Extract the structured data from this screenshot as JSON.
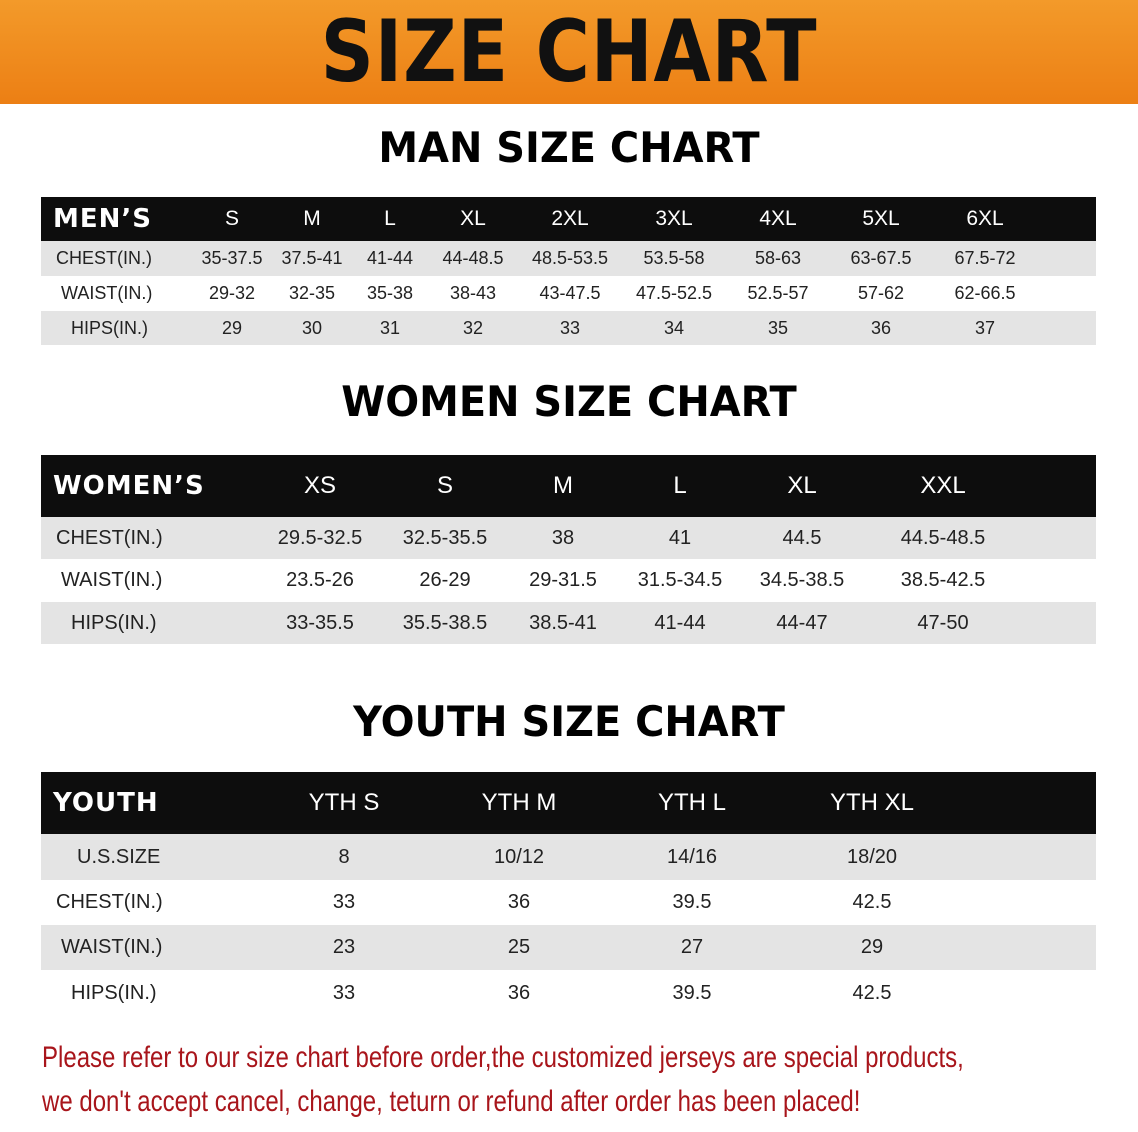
{
  "banner_title": "SIZE CHART",
  "colors": {
    "banner": "#ec7f14",
    "header_bg": "#0d0d0d",
    "row_gray": "#e4e4e4",
    "note": "#a8151b"
  },
  "men": {
    "title": "MAN SIZE CHART",
    "header_label": "MEN’S",
    "sizes": [
      "S",
      "M",
      "L",
      "XL",
      "2XL",
      "3XL",
      "4XL",
      "5XL",
      "6XL"
    ],
    "rows": [
      {
        "label": "CHEST(IN.)",
        "values": [
          "35-37.5",
          "37.5-41",
          "41-44",
          "44-48.5",
          "48.5-53.5",
          "53.5-58",
          "58-63",
          "63-67.5",
          "67.5-72"
        ]
      },
      {
        "label": "WAIST(IN.)",
        "values": [
          "29-32",
          "32-35",
          "35-38",
          "38-43",
          "43-47.5",
          "47.5-52.5",
          "52.5-57",
          "57-62",
          "62-66.5"
        ]
      },
      {
        "label": "HIPS(IN.)",
        "values": [
          "29",
          "30",
          "31",
          "32",
          "33",
          "34",
          "35",
          "36",
          "37"
        ]
      }
    ]
  },
  "women": {
    "title": "WOMEN SIZE CHART",
    "header_label": "WOMEN’S",
    "sizes": [
      "XS",
      "S",
      "M",
      "L",
      "XL",
      "XXL"
    ],
    "rows": [
      {
        "label": "CHEST(IN.)",
        "values": [
          "29.5-32.5",
          "32.5-35.5",
          "38",
          "41",
          "44.5",
          "44.5-48.5"
        ]
      },
      {
        "label": "WAIST(IN.)",
        "values": [
          "23.5-26",
          "26-29",
          "29-31.5",
          "31.5-34.5",
          "34.5-38.5",
          "38.5-42.5"
        ]
      },
      {
        "label": "HIPS(IN.)",
        "values": [
          "33-35.5",
          "35.5-38.5",
          "38.5-41",
          "41-44",
          "44-47",
          "47-50"
        ]
      }
    ]
  },
  "youth": {
    "title": "YOUTH SIZE CHART",
    "header_label": "YOUTH",
    "sizes": [
      "YTH S",
      "YTH M",
      "YTH L",
      "YTH XL"
    ],
    "rows": [
      {
        "label": "U.S.SIZE",
        "values": [
          "8",
          "10/12",
          "14/16",
          "18/20"
        ]
      },
      {
        "label": "CHEST(IN.)",
        "values": [
          "33",
          "36",
          "39.5",
          "42.5"
        ]
      },
      {
        "label": "WAIST(IN.)",
        "values": [
          "23",
          "25",
          "27",
          "29"
        ]
      },
      {
        "label": "HIPS(IN.)",
        "values": [
          "33",
          "36",
          "39.5",
          "42.5"
        ]
      }
    ]
  },
  "note": {
    "line1": "Please refer to our size chart before order,the customized jerseys are special products,",
    "line2": "we don't accept cancel, change, teturn or refund after order has been placed!"
  }
}
